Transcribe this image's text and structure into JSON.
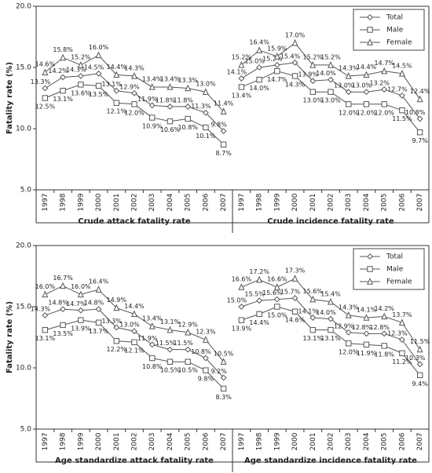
{
  "chart_data": [
    {
      "type": "line",
      "title": "Crude attack fatality rate",
      "ylabel": "Fatality rate (%)",
      "categories": [
        "1997",
        "1998",
        "1999",
        "2000",
        "2001",
        "2002",
        "2003",
        "2004",
        "2005",
        "2006",
        "2007"
      ],
      "ylim": [
        5,
        20
      ],
      "yticks": [
        {
          "value": 5,
          "label": "5.0"
        },
        {
          "value": 10,
          "label": "10.0"
        },
        {
          "value": 15,
          "label": "15.0"
        },
        {
          "value": 20,
          "label": "20.0"
        }
      ],
      "series": [
        {
          "marker": "diamond",
          "color": "#555555",
          "values": [
            13.3,
            14.2,
            14.3,
            14.5,
            13.1,
            12.9,
            11.9,
            11.8,
            11.8,
            11.3,
            9.8
          ],
          "value_labels": [
            "13.3%",
            "14.2%",
            "14.3%",
            "14.5%",
            "13.1%",
            "12.9%",
            "11.9%",
            "11.8%",
            "11.8%",
            "11.3%",
            "9.8%"
          ]
        },
        {
          "marker": "square",
          "color": "#555555",
          "values": [
            12.5,
            13.1,
            13.6,
            13.5,
            12.1,
            12.0,
            10.9,
            10.6,
            10.8,
            10.1,
            8.7
          ],
          "value_labels": [
            "12.5%",
            "13.1%",
            "13.6%",
            "13.5%",
            "12.1%",
            "12.0%",
            "10.9%",
            "10.6%",
            "10.8%",
            "10.1%",
            "8.7%"
          ]
        },
        {
          "marker": "triangle",
          "color": "#555555",
          "values": [
            14.6,
            15.8,
            15.2,
            16.0,
            14.4,
            14.3,
            13.4,
            13.4,
            13.3,
            13.0,
            11.4
          ],
          "value_labels": [
            "14.6%",
            "15.8%",
            "15.2%",
            "16.0%",
            "14.4%",
            "14.3%",
            "13.4%",
            "13.4%",
            "13.3%",
            "13.0%",
            "11.4%"
          ]
        }
      ]
    },
    {
      "type": "line",
      "title": "Crude incidence fatality rate",
      "legend": "upper right",
      "categories": [
        "1997",
        "1998",
        "1999",
        "2000",
        "2001",
        "2002",
        "2003",
        "2004",
        "2005",
        "2006",
        "2007"
      ],
      "ylim": [
        5,
        20
      ],
      "series": [
        {
          "name": "Total",
          "marker": "diamond",
          "color": "#555555",
          "values": [
            14.1,
            15.0,
            15.2,
            15.4,
            13.9,
            14.0,
            13.0,
            13.0,
            13.2,
            12.7,
            10.8
          ],
          "value_labels": [
            "14.1%",
            "15.0%",
            "15.2%",
            "15.4%",
            "13.9%",
            "14.0%",
            "13.0%",
            "13.0%",
            "13.2%",
            "12.7%",
            "10.8%"
          ]
        },
        {
          "name": "Male",
          "marker": "square",
          "color": "#555555",
          "values": [
            13.4,
            14.0,
            14.7,
            14.3,
            13.0,
            13.0,
            12.0,
            12.0,
            12.0,
            11.5,
            9.7
          ],
          "value_labels": [
            "13.4%",
            "14.0%",
            "14.7%",
            "14.3%",
            "13.0%",
            "13.0%",
            "12.0%",
            "12.0%",
            "12.0%",
            "11.5%",
            "9.7%"
          ]
        },
        {
          "name": "Female",
          "marker": "triangle",
          "color": "#555555",
          "values": [
            15.2,
            16.4,
            15.9,
            17.0,
            15.2,
            15.2,
            14.3,
            14.4,
            14.7,
            14.5,
            12.4
          ],
          "value_labels": [
            "15.2%",
            "16.4%",
            "15.9%",
            "17.0%",
            "15.2%",
            "15.2%",
            "14.3%",
            "14.4%",
            "14.7%",
            "14.5%",
            "12.4%"
          ]
        }
      ]
    },
    {
      "type": "line",
      "title": "Age standardize attack fatality rate",
      "ylabel": "Fatality rate (%)",
      "categories": [
        "1997",
        "1998",
        "1999",
        "2000",
        "2001",
        "2002",
        "2003",
        "2004",
        "2005",
        "2006",
        "2007"
      ],
      "ylim": [
        5,
        20
      ],
      "yticks": [
        {
          "value": 5,
          "label": "5.0"
        },
        {
          "value": 10,
          "label": "10.0"
        },
        {
          "value": 15,
          "label": "15.0"
        },
        {
          "value": 20,
          "label": "20.0"
        }
      ],
      "series": [
        {
          "marker": "diamond",
          "color": "#555555",
          "values": [
            14.3,
            14.8,
            14.7,
            14.8,
            13.3,
            13.0,
            11.9,
            11.5,
            11.5,
            10.8,
            9.2
          ],
          "value_labels": [
            "14.3%",
            "14.8%",
            "14.7%",
            "14.8%",
            "13.3%",
            "13.0%",
            "11.9%",
            "11.5%",
            "11.5%",
            "10.8%",
            "9.2%"
          ]
        },
        {
          "marker": "square",
          "color": "#555555",
          "values": [
            13.1,
            13.5,
            13.9,
            13.7,
            12.2,
            12.1,
            10.8,
            10.5,
            10.5,
            9.8,
            8.3
          ],
          "value_labels": [
            "13.1%",
            "13.5%",
            "13.9%",
            "13.7%",
            "12.2%",
            "12.1%",
            "10.8%",
            "10.5%",
            "10.5%",
            "9.8%",
            "8.3%"
          ]
        },
        {
          "marker": "triangle",
          "color": "#555555",
          "values": [
            16.0,
            16.7,
            16.0,
            16.4,
            14.9,
            14.4,
            13.4,
            13.1,
            12.9,
            12.3,
            10.5
          ],
          "value_labels": [
            "16.0%",
            "16.7%",
            "16.0%",
            "16.4%",
            "14.9%",
            "14.4%",
            "13.4%",
            "13.1%",
            "12.9%",
            "12.3%",
            "10.5%"
          ]
        }
      ]
    },
    {
      "type": "line",
      "title": "Age standardize incidence fatality rate",
      "legend": "upper right",
      "categories": [
        "1997",
        "1998",
        "1999",
        "2000",
        "2001",
        "2002",
        "2003",
        "2004",
        "2005",
        "2006",
        "2007"
      ],
      "ylim": [
        5,
        20
      ],
      "series": [
        {
          "name": "Total",
          "marker": "diamond",
          "color": "#555555",
          "values": [
            15.0,
            15.5,
            15.6,
            15.7,
            14.1,
            14.0,
            12.9,
            12.8,
            12.8,
            12.3,
            10.3
          ],
          "value_labels": [
            "15.0%",
            "15.5%",
            "15.6%",
            "15.7%",
            "14.1%",
            "14.0%",
            "12.9%",
            "12.8%",
            "12.8%",
            "12.3%",
            "10.3%"
          ]
        },
        {
          "name": "Male",
          "marker": "square",
          "color": "#555555",
          "values": [
            13.9,
            14.4,
            15.0,
            14.6,
            13.1,
            13.1,
            12.0,
            11.9,
            11.8,
            11.2,
            9.4
          ],
          "value_labels": [
            "13.9%",
            "14.4%",
            "15.0%",
            "14.6%",
            "13.1%",
            "13.1%",
            "12.0%",
            "11.9%",
            "11.8%",
            "11.2%",
            "9.4%"
          ]
        },
        {
          "name": "Female",
          "marker": "triangle",
          "color": "#555555",
          "values": [
            16.6,
            17.2,
            16.6,
            17.3,
            15.6,
            15.4,
            14.3,
            14.1,
            14.2,
            13.7,
            11.5
          ],
          "value_labels": [
            "16.6%",
            "17.2%",
            "16.6%",
            "17.3%",
            "15.6%",
            "15.4%",
            "14.3%",
            "14.1%",
            "14.2%",
            "13.7%",
            "11.5%"
          ]
        }
      ]
    }
  ]
}
